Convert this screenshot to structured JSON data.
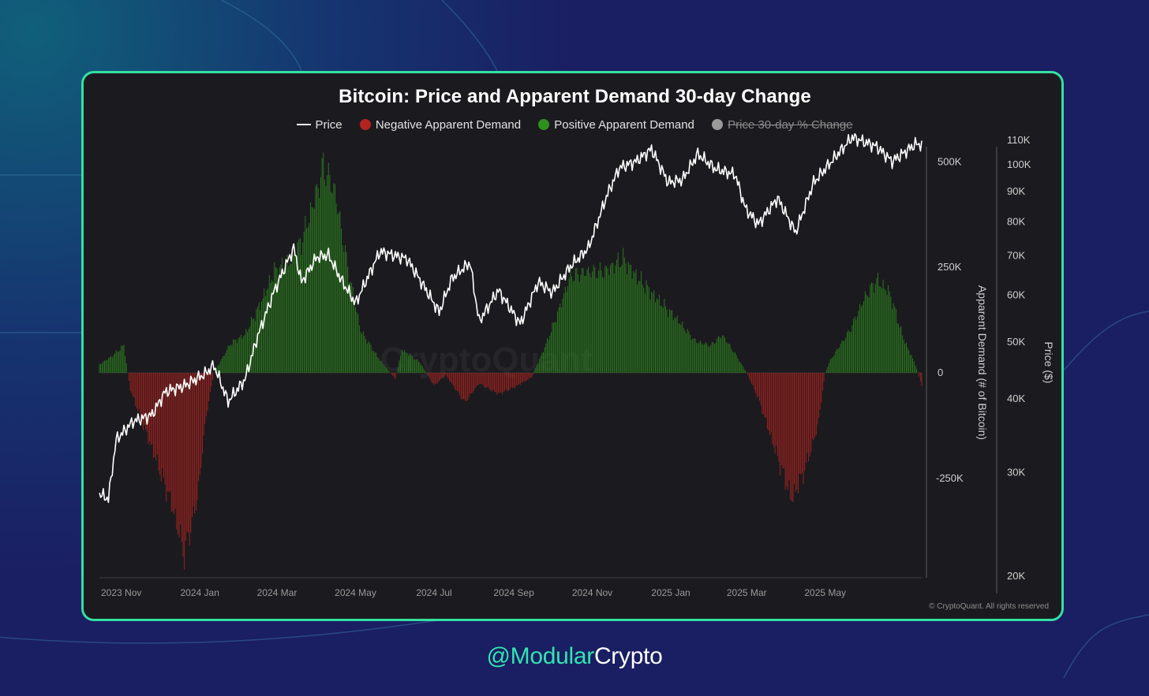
{
  "chart_data": {
    "type": "bar+line",
    "title": "Bitcoin: Price and Apparent Demand 30-day Change",
    "legend": [
      {
        "label": "Price",
        "color": "#ffffff",
        "active": true
      },
      {
        "label": "Negative Apparent Demand",
        "color": "#b3231f",
        "active": true
      },
      {
        "label": "Positive Apparent Demand",
        "color": "#2f8f1f",
        "active": true
      },
      {
        "label": "Price 30-day % Change",
        "color": "#9a9a9a",
        "active": false
      }
    ],
    "x_tick_labels": [
      "2023 Nov",
      "2024 Jan",
      "2024 Mar",
      "2024 May",
      "2024 Jul",
      "2024 Sep",
      "2024 Nov",
      "2025 Jan",
      "2025 Mar",
      "2025 May"
    ],
    "x_range": [
      "2023-10-15",
      "2025-07-15"
    ],
    "left_axis": {
      "label": "Apparent Demand (# of Bitcoin)",
      "tick_labels": [
        "500K",
        "250K",
        "0",
        "-250K"
      ],
      "tick_values": [
        500000,
        250000,
        0,
        -250000
      ],
      "range": [
        -480000,
        540000
      ]
    },
    "right_axis": {
      "label": "Price ($)",
      "scale": "log",
      "tick_labels": [
        "110K",
        "100K",
        "90K",
        "80K",
        "70K",
        "60K",
        "50K",
        "40K",
        "30K",
        "20K"
      ],
      "tick_values": [
        110000,
        100000,
        90000,
        80000,
        70000,
        60000,
        50000,
        40000,
        30000,
        20000
      ],
      "range": [
        20000,
        117000
      ]
    },
    "apparent_demand_keypoints": [
      [
        "2023-10-15",
        20000
      ],
      [
        "2023-10-25",
        40000
      ],
      [
        "2023-11-03",
        65000
      ],
      [
        "2023-11-06",
        0
      ],
      [
        "2023-11-08",
        -40000
      ],
      [
        "2023-11-25",
        -180000
      ],
      [
        "2023-12-10",
        -310000
      ],
      [
        "2023-12-20",
        -430000
      ],
      [
        "2023-12-30",
        -300000
      ],
      [
        "2024-01-06",
        -100000
      ],
      [
        "2024-01-12",
        0
      ],
      [
        "2024-01-25",
        70000
      ],
      [
        "2024-02-05",
        90000
      ],
      [
        "2024-02-15",
        150000
      ],
      [
        "2024-02-28",
        240000
      ],
      [
        "2024-03-10",
        260000
      ],
      [
        "2024-03-20",
        310000
      ],
      [
        "2024-04-01",
        430000
      ],
      [
        "2024-04-06",
        490000
      ],
      [
        "2024-04-15",
        430000
      ],
      [
        "2024-04-25",
        250000
      ],
      [
        "2024-05-05",
        100000
      ],
      [
        "2024-05-20",
        30000
      ],
      [
        "2024-06-01",
        -15000
      ],
      [
        "2024-06-06",
        55000
      ],
      [
        "2024-06-20",
        25000
      ],
      [
        "2024-07-01",
        -30000
      ],
      [
        "2024-07-10",
        -5000
      ],
      [
        "2024-07-25",
        -70000
      ],
      [
        "2024-08-05",
        -25000
      ],
      [
        "2024-08-20",
        -50000
      ],
      [
        "2024-09-01",
        -35000
      ],
      [
        "2024-09-15",
        -10000
      ],
      [
        "2024-09-25",
        60000
      ],
      [
        "2024-10-05",
        140000
      ],
      [
        "2024-10-15",
        230000
      ],
      [
        "2024-10-28",
        240000
      ],
      [
        "2024-11-10",
        240000
      ],
      [
        "2024-11-25",
        270000
      ],
      [
        "2024-12-05",
        230000
      ],
      [
        "2024-12-20",
        180000
      ],
      [
        "2025-01-05",
        130000
      ],
      [
        "2025-01-20",
        75000
      ],
      [
        "2025-02-01",
        65000
      ],
      [
        "2025-02-10",
        90000
      ],
      [
        "2025-02-20",
        45000
      ],
      [
        "2025-03-01",
        0
      ],
      [
        "2025-03-10",
        -60000
      ],
      [
        "2025-03-25",
        -200000
      ],
      [
        "2025-04-05",
        -300000
      ],
      [
        "2025-04-15",
        -230000
      ],
      [
        "2025-04-25",
        -130000
      ],
      [
        "2025-05-01",
        0
      ],
      [
        "2025-05-05",
        30000
      ],
      [
        "2025-05-20",
        100000
      ],
      [
        "2025-06-01",
        180000
      ],
      [
        "2025-06-10",
        220000
      ],
      [
        "2025-06-20",
        190000
      ],
      [
        "2025-07-01",
        80000
      ],
      [
        "2025-07-10",
        20000
      ],
      [
        "2025-07-15",
        -30000
      ]
    ],
    "price_keypoints": [
      [
        "2023-10-15",
        27500
      ],
      [
        "2023-10-22",
        27000
      ],
      [
        "2023-10-28",
        34000
      ],
      [
        "2023-11-10",
        36500
      ],
      [
        "2023-11-25",
        37500
      ],
      [
        "2023-12-05",
        41000
      ],
      [
        "2023-12-20",
        42000
      ],
      [
        "2024-01-05",
        44000
      ],
      [
        "2024-01-12",
        45500
      ],
      [
        "2024-01-23",
        39500
      ],
      [
        "2024-02-05",
        43000
      ],
      [
        "2024-02-15",
        51000
      ],
      [
        "2024-02-28",
        61000
      ],
      [
        "2024-03-14",
        72000
      ],
      [
        "2024-03-20",
        63000
      ],
      [
        "2024-04-01",
        69500
      ],
      [
        "2024-04-10",
        70000
      ],
      [
        "2024-04-20",
        63500
      ],
      [
        "2024-05-01",
        58000
      ],
      [
        "2024-05-20",
        71000
      ],
      [
        "2024-06-10",
        69000
      ],
      [
        "2024-06-25",
        61000
      ],
      [
        "2024-07-05",
        56000
      ],
      [
        "2024-07-15",
        64000
      ],
      [
        "2024-07-29",
        68000
      ],
      [
        "2024-08-05",
        54000
      ],
      [
        "2024-08-20",
        61000
      ],
      [
        "2024-09-06",
        53500
      ],
      [
        "2024-09-20",
        63000
      ],
      [
        "2024-10-01",
        60500
      ],
      [
        "2024-10-15",
        67000
      ],
      [
        "2024-10-29",
        72000
      ],
      [
        "2024-11-12",
        88000
      ],
      [
        "2024-11-22",
        98500
      ],
      [
        "2024-12-05",
        101000
      ],
      [
        "2024-12-17",
        106000
      ],
      [
        "2024-12-30",
        93000
      ],
      [
        "2025-01-10",
        94000
      ],
      [
        "2025-01-22",
        104000
      ],
      [
        "2025-02-05",
        98000
      ],
      [
        "2025-02-20",
        96000
      ],
      [
        "2025-02-28",
        84000
      ],
      [
        "2025-03-10",
        79000
      ],
      [
        "2025-03-25",
        87500
      ],
      [
        "2025-04-08",
        76500
      ],
      [
        "2025-04-22",
        93000
      ],
      [
        "2025-05-10",
        103500
      ],
      [
        "2025-05-22",
        111000
      ],
      [
        "2025-06-10",
        107000
      ],
      [
        "2025-06-22",
        101000
      ],
      [
        "2025-07-10",
        108000
      ],
      [
        "2025-07-15",
        108000
      ]
    ],
    "watermark": "CryptoQuant",
    "copyright": "© CryptoQuant. All rights reserved"
  },
  "footer": {
    "handle_prefix": "@Modular",
    "handle_suffix": "Crypto"
  },
  "colors": {
    "accent_border": "#35e0a1",
    "card_background": "#1b1b1f",
    "page_background": "#182064",
    "positive_bar": "#2f8f1f",
    "negative_bar": "#b3231f",
    "price_line": "#ffffff"
  }
}
